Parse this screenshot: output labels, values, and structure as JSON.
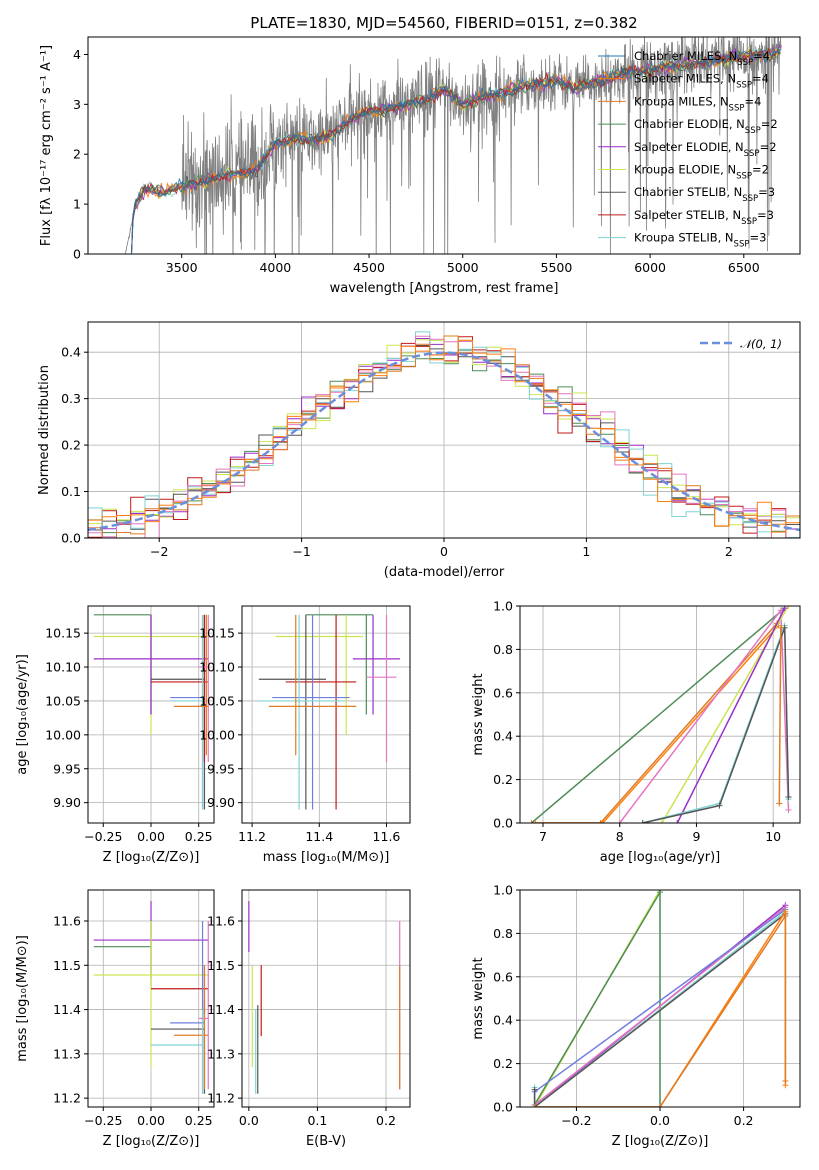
{
  "figure": {
    "colors": {
      "chabrier_miles": "#1f77b4",
      "salpeter_miles": "#ff7f0e",
      "kroupa_miles": "#e07b26",
      "chabrier_elodie": "#4d8c57",
      "salpeter_elodie": "#9a2fc8",
      "kroupa_elodie": "#cce650",
      "chabrier_stelib": "#555555",
      "salpeter_stelib": "#c11a1a",
      "kroupa_stelib": "#7fd3d3",
      "extra_pink": "#e377c2",
      "extra_blue": "#6f7fdf",
      "grid": "#b0b0b0",
      "normal_curve": "#6a8fdc"
    }
  },
  "chart_data": [
    {
      "id": "spectrum",
      "type": "line",
      "title": "PLATE=1830, MJD=54560, FIBERID=0151, z=0.382",
      "xlabel": "wavelength [Angstrom, rest frame]",
      "ylabel": "Flux [fλ 10⁻¹⁷ erg cm⁻² s⁻¹ A⁻¹]",
      "xlim": [
        3000,
        6800
      ],
      "ylim": [
        0,
        4.35
      ],
      "xticks": [
        3500,
        4000,
        4500,
        5000,
        5500,
        6000,
        6500
      ],
      "yticks": [
        0,
        1,
        2,
        3,
        4
      ],
      "legend_position": "upper right",
      "legend": [
        {
          "label": "Chabrier MILES, N",
          "sub": "SSP",
          "eq": "=4",
          "color_key": "chabrier_miles"
        },
        {
          "label": "Salpeter MILES, N",
          "sub": "SSP",
          "eq": "=4",
          "color_key": "salpeter_miles"
        },
        {
          "label": "Kroupa MILES, N",
          "sub": "SSP",
          "eq": "=4",
          "color_key": "kroupa_miles"
        },
        {
          "label": "Chabrier ELODIE, N",
          "sub": "SSP",
          "eq": "=2",
          "color_key": "chabrier_elodie"
        },
        {
          "label": "Salpeter ELODIE, N",
          "sub": "SSP",
          "eq": "=2",
          "color_key": "salpeter_elodie"
        },
        {
          "label": "Kroupa ELODIE, N",
          "sub": "SSP",
          "eq": "=2",
          "color_key": "kroupa_elodie"
        },
        {
          "label": "Chabrier STELIB, N",
          "sub": "SSP",
          "eq": "=3",
          "color_key": "chabrier_stelib"
        },
        {
          "label": "Salpeter STELIB, N",
          "sub": "SSP",
          "eq": "=3",
          "color_key": "salpeter_stelib"
        },
        {
          "label": "Kroupa STELIB, N",
          "sub": "SSP",
          "eq": "=3",
          "color_key": "kroupa_stelib"
        }
      ],
      "model_anchors": {
        "wavelength": [
          3200,
          3250,
          3300,
          3400,
          3500,
          3600,
          3700,
          3800,
          3900,
          4000,
          4100,
          4200,
          4300,
          4400,
          4500,
          4600,
          4700,
          4800,
          4900,
          5000,
          5100,
          5200,
          5300,
          5400,
          5500,
          5600,
          5700,
          5800,
          5900,
          6000,
          6100,
          6200,
          6300,
          6400,
          6500,
          6600,
          6700
        ],
        "flux": [
          0.0,
          0.95,
          1.3,
          1.25,
          1.35,
          1.45,
          1.55,
          1.6,
          1.7,
          2.2,
          2.35,
          2.25,
          2.4,
          2.7,
          2.85,
          2.9,
          3.0,
          3.1,
          3.3,
          3.0,
          3.15,
          3.2,
          3.35,
          3.4,
          3.5,
          3.3,
          3.45,
          3.55,
          3.65,
          3.7,
          3.75,
          3.8,
          3.85,
          3.9,
          3.95,
          4.0,
          4.05
        ]
      }
    },
    {
      "id": "residuals",
      "type": "histogram",
      "xlabel": "(data-model)/error",
      "ylabel": "Normed distribution",
      "xlim": [
        -2.5,
        2.5
      ],
      "ylim": [
        0,
        0.465
      ],
      "xticks": [
        -2,
        -1,
        0,
        1,
        2
      ],
      "yticks": [
        0.0,
        0.1,
        0.2,
        0.3,
        0.4
      ],
      "legend_position": "upper right",
      "legend": [
        {
          "label": "𝒩(0, 1)",
          "color_key": "normal_curve",
          "style": "dashed"
        }
      ],
      "bin_width": 0.1
    },
    {
      "id": "age_vs_Z",
      "type": "errorbar",
      "xlabel": "Z [log₁₀(Z/Z⊙)]",
      "ylabel": "age  [log₁₀(age/yr)]",
      "xlim": [
        -0.33,
        0.33
      ],
      "ylim": [
        9.87,
        10.19
      ],
      "xticks": [
        -0.25,
        0.0,
        0.25
      ],
      "yticks": [
        9.9,
        9.95,
        10.0,
        10.05,
        10.1,
        10.15
      ],
      "points": [
        {
          "x": 0.0,
          "xl": -0.3,
          "xh": 0.0,
          "y": 10.177,
          "yl": 10.03,
          "yh": 10.177,
          "color_key": "chabrier_elodie"
        },
        {
          "x": 0.0,
          "xl": -0.3,
          "xh": 0.3,
          "y": 10.145,
          "yl": 10.0,
          "yh": 10.177,
          "color_key": "kroupa_elodie"
        },
        {
          "x": 0.0,
          "xl": -0.3,
          "xh": 0.3,
          "y": 10.112,
          "yl": 10.03,
          "yh": 10.177,
          "color_key": "salpeter_elodie"
        },
        {
          "x": 0.28,
          "xl": 0.0,
          "xh": 0.28,
          "y": 10.082,
          "yl": 9.89,
          "yh": 10.177,
          "color_key": "chabrier_stelib"
        },
        {
          "x": 0.28,
          "xl": 0.0,
          "xh": 0.3,
          "y": 10.078,
          "yl": 9.96,
          "yh": 10.177,
          "color_key": "salpeter_stelib"
        },
        {
          "x": 0.27,
          "xl": 0.1,
          "xh": 0.28,
          "y": 10.055,
          "yl": 9.89,
          "yh": 10.177,
          "color_key": "extra_blue"
        },
        {
          "x": 0.27,
          "xl": 0.1,
          "xh": 0.28,
          "y": 10.05,
          "yl": 9.89,
          "yh": 10.177,
          "color_key": "kroupa_stelib"
        },
        {
          "x": 0.29,
          "xl": 0.12,
          "xh": 0.3,
          "y": 10.042,
          "yl": 9.97,
          "yh": 10.177,
          "color_key": "kroupa_miles"
        },
        {
          "x": 0.3,
          "xl": 0.25,
          "xh": 0.3,
          "y": 10.1,
          "yl": 9.96,
          "yh": 10.177,
          "color_key": "extra_pink"
        }
      ]
    },
    {
      "id": "age_vs_mass",
      "type": "errorbar",
      "xlabel": "mass [log₁₀(M/M⊙)]",
      "ylabel": "",
      "xlim": [
        11.17,
        11.67
      ],
      "ylim": [
        9.87,
        10.19
      ],
      "xticks": [
        11.2,
        11.4,
        11.6
      ],
      "yticks": [
        9.9,
        9.95,
        10.0,
        10.05,
        10.1,
        10.15
      ],
      "points": [
        {
          "x": 11.54,
          "xl": 11.36,
          "xh": 11.56,
          "y": 10.177,
          "yl": 10.03,
          "yh": 10.177,
          "color_key": "chabrier_elodie"
        },
        {
          "x": 11.48,
          "xl": 11.27,
          "xh": 11.53,
          "y": 10.145,
          "yl": 10.0,
          "yh": 10.177,
          "color_key": "kroupa_elodie"
        },
        {
          "x": 11.56,
          "xl": 11.5,
          "xh": 11.64,
          "y": 10.112,
          "yl": 10.03,
          "yh": 10.177,
          "color_key": "salpeter_elodie"
        },
        {
          "x": 11.36,
          "xl": 11.22,
          "xh": 11.42,
          "y": 10.082,
          "yl": 9.89,
          "yh": 10.177,
          "color_key": "chabrier_stelib"
        },
        {
          "x": 11.45,
          "xl": 11.3,
          "xh": 11.51,
          "y": 10.078,
          "yl": 9.89,
          "yh": 10.177,
          "color_key": "salpeter_stelib"
        },
        {
          "x": 11.38,
          "xl": 11.26,
          "xh": 11.49,
          "y": 10.055,
          "yl": 9.89,
          "yh": 10.177,
          "color_key": "extra_blue"
        },
        {
          "x": 11.34,
          "xl": 11.22,
          "xh": 11.47,
          "y": 10.05,
          "yl": 9.89,
          "yh": 10.177,
          "color_key": "kroupa_stelib"
        },
        {
          "x": 11.33,
          "xl": 11.25,
          "xh": 11.51,
          "y": 10.042,
          "yl": 9.97,
          "yh": 10.177,
          "color_key": "kroupa_miles"
        },
        {
          "x": 11.6,
          "xl": 11.54,
          "xh": 11.63,
          "y": 10.085,
          "yl": 9.96,
          "yh": 10.177,
          "color_key": "extra_pink"
        }
      ]
    },
    {
      "id": "mass_weight_vs_age",
      "type": "line",
      "xlabel": "age  [log₁₀(age/yr)]",
      "ylabel": "mass weight",
      "xlim": [
        6.7,
        10.35
      ],
      "ylim": [
        0,
        1.0
      ],
      "xticks": [
        7,
        8,
        9,
        10
      ],
      "yticks": [
        0.0,
        0.2,
        0.4,
        0.6,
        0.8,
        1.0
      ],
      "series": [
        {
          "color_key": "chabrier_elodie",
          "x": [
            6.85,
            10.15
          ],
          "y": [
            0.0,
            0.99
          ]
        },
        {
          "color_key": "kroupa_miles",
          "x": [
            6.85,
            7.75,
            10.05
          ],
          "y": [
            0.0,
            0.0,
            0.92
          ]
        },
        {
          "color_key": "salpeter_miles",
          "x": [
            6.9,
            7.78,
            10.07
          ],
          "y": [
            0.0,
            0.0,
            0.91
          ]
        },
        {
          "color_key": "extra_pink",
          "x": [
            8.0,
            10.1,
            10.2
          ],
          "y": [
            0.0,
            0.98,
            0.06
          ]
        },
        {
          "color_key": "kroupa_elodie",
          "x": [
            8.55,
            10.2
          ],
          "y": [
            0.0,
            1.0
          ]
        },
        {
          "color_key": "salpeter_elodie",
          "x": [
            8.75,
            10.15
          ],
          "y": [
            0.0,
            0.99
          ]
        },
        {
          "color_key": "kroupa_stelib",
          "x": [
            8.3,
            9.3,
            10.15,
            10.2
          ],
          "y": [
            0.0,
            0.09,
            0.91,
            0.11
          ]
        },
        {
          "color_key": "chabrier_stelib",
          "x": [
            8.3,
            9.3,
            10.15,
            10.2
          ],
          "y": [
            0.0,
            0.08,
            0.9,
            0.12
          ]
        },
        {
          "color_key": "kroupa_miles",
          "x": [
            10.08,
            10.1
          ],
          "y": [
            0.09,
            0.9
          ]
        }
      ]
    },
    {
      "id": "mass_vs_Z",
      "type": "errorbar",
      "xlabel": "Z [log₁₀(Z/Z⊙)]",
      "ylabel": "mass [log₁₀(M/M⊙)]",
      "xlim": [
        -0.33,
        0.33
      ],
      "ylim": [
        11.18,
        11.67
      ],
      "xticks": [
        -0.25,
        0.0,
        0.25
      ],
      "yticks": [
        11.2,
        11.3,
        11.4,
        11.5,
        11.6
      ],
      "points": [
        {
          "x": 0.0,
          "xl": -0.3,
          "xh": 0.3,
          "y": 11.557,
          "yl": 11.47,
          "yh": 11.645,
          "color_key": "salpeter_elodie"
        },
        {
          "x": 0.0,
          "xl": -0.3,
          "xh": 0.0,
          "y": 11.542,
          "yl": 11.45,
          "yh": 11.6,
          "color_key": "chabrier_elodie"
        },
        {
          "x": 0.0,
          "xl": -0.3,
          "xh": 0.3,
          "y": 11.478,
          "yl": 11.27,
          "yh": 11.6,
          "color_key": "kroupa_elodie"
        },
        {
          "x": 0.28,
          "xl": 0.0,
          "xh": 0.3,
          "y": 11.447,
          "yl": 11.39,
          "yh": 11.5,
          "color_key": "salpeter_stelib"
        },
        {
          "x": 0.28,
          "xl": 0.0,
          "xh": 0.28,
          "y": 11.356,
          "yl": 11.21,
          "yh": 11.42,
          "color_key": "chabrier_stelib"
        },
        {
          "x": 0.27,
          "xl": 0.1,
          "xh": 0.28,
          "y": 11.37,
          "yl": 11.21,
          "yh": 11.6,
          "color_key": "extra_blue"
        },
        {
          "x": 0.28,
          "xl": 0.12,
          "xh": 0.3,
          "y": 11.342,
          "yl": 11.22,
          "yh": 11.5,
          "color_key": "kroupa_miles"
        },
        {
          "x": 0.27,
          "xl": 0.0,
          "xh": 0.27,
          "y": 11.32,
          "yl": 11.21,
          "yh": 11.4,
          "color_key": "kroupa_stelib"
        },
        {
          "x": 0.3,
          "xl": 0.25,
          "xh": 0.3,
          "y": 11.38,
          "yl": 11.22,
          "yh": 11.6,
          "color_key": "extra_pink"
        }
      ]
    },
    {
      "id": "mass_vs_ebv",
      "type": "errorbar",
      "xlabel": "E(B-V)",
      "ylabel": "",
      "xlim": [
        -0.01,
        0.235
      ],
      "ylim": [
        11.18,
        11.67
      ],
      "xticks": [
        0.0,
        0.1,
        0.2
      ],
      "yticks": [
        11.2,
        11.3,
        11.4,
        11.5,
        11.6
      ],
      "points": [
        {
          "x": 0.0,
          "y": 11.557,
          "yl": 11.53,
          "yh": 11.645,
          "color_key": "salpeter_elodie"
        },
        {
          "x": 0.005,
          "y": 11.47,
          "yl": 11.27,
          "yh": 11.5,
          "color_key": "kroupa_elodie"
        },
        {
          "x": 0.013,
          "y": 11.35,
          "yl": 11.21,
          "yh": 11.41,
          "color_key": "chabrier_stelib"
        },
        {
          "x": 0.018,
          "y": 11.42,
          "yl": 11.34,
          "yh": 11.5,
          "color_key": "salpeter_stelib"
        },
        {
          "x": 0.01,
          "y": 11.32,
          "yl": 11.21,
          "yh": 11.4,
          "color_key": "kroupa_stelib"
        },
        {
          "x": 0.22,
          "y": 11.38,
          "yl": 11.22,
          "yh": 11.6,
          "color_key": "extra_pink"
        },
        {
          "x": 0.22,
          "y": 11.36,
          "yl": 11.22,
          "yh": 11.5,
          "color_key": "kroupa_miles"
        }
      ]
    },
    {
      "id": "mass_weight_vs_Z",
      "type": "line",
      "xlabel": "Z [log₁₀(Z/Z⊙)]",
      "ylabel": "mass weight",
      "xlim": [
        -0.335,
        0.335
      ],
      "ylim": [
        0,
        1.0
      ],
      "xticks": [
        -0.2,
        0.0,
        0.2
      ],
      "yticks": [
        0.0,
        0.2,
        0.4,
        0.6,
        0.8,
        1.0
      ],
      "series": [
        {
          "color_key": "kroupa_elodie",
          "x": [
            -0.3,
            0.0
          ],
          "y": [
            0.0,
            1.0
          ]
        },
        {
          "color_key": "chabrier_elodie",
          "x": [
            -0.3,
            0.0
          ],
          "y": [
            0.01,
            0.99
          ]
        },
        {
          "color_key": "chabrier_elodie",
          "x": [
            0.0,
            0.0
          ],
          "y": [
            0.0,
            1.0
          ]
        },
        {
          "color_key": "salpeter_elodie",
          "x": [
            -0.3,
            0.3
          ],
          "y": [
            0.0,
            0.93
          ]
        },
        {
          "color_key": "extra_pink",
          "x": [
            -0.3,
            0.3
          ],
          "y": [
            0.01,
            0.92
          ]
        },
        {
          "color_key": "extra_blue",
          "x": [
            -0.3,
            0.3
          ],
          "y": [
            0.07,
            0.91
          ]
        },
        {
          "color_key": "kroupa_stelib",
          "x": [
            -0.3,
            -0.3,
            0.3,
            0.3
          ],
          "y": [
            0.09,
            0.0,
            0.9,
            0.88
          ]
        },
        {
          "color_key": "chabrier_stelib",
          "x": [
            -0.3,
            -0.3,
            0.3
          ],
          "y": [
            0.08,
            0.0,
            0.89
          ]
        },
        {
          "color_key": "salpeter_miles",
          "x": [
            -0.3,
            0.0,
            0.3,
            0.3
          ],
          "y": [
            0.0,
            0.0,
            0.9,
            0.1
          ]
        },
        {
          "color_key": "kroupa_miles",
          "x": [
            -0.3,
            0.0,
            0.3,
            0.3
          ],
          "y": [
            0.0,
            0.0,
            0.88,
            0.12
          ]
        }
      ]
    }
  ]
}
